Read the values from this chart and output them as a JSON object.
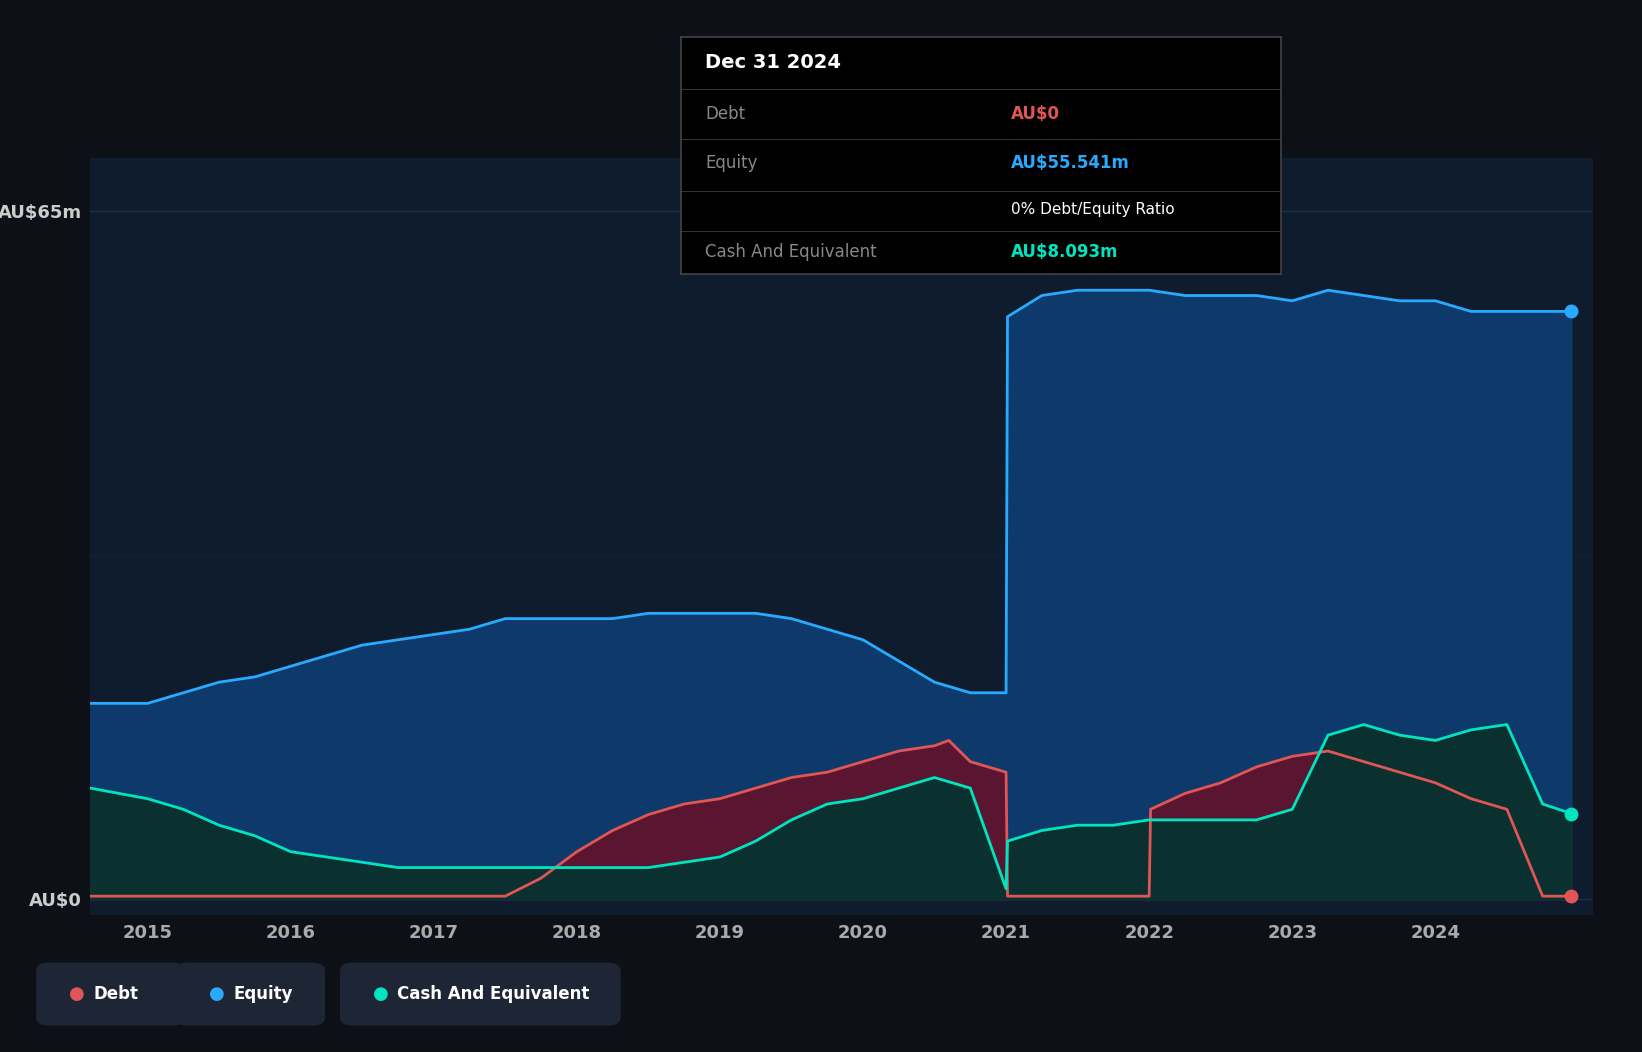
{
  "bg_color": "#0d1117",
  "plot_bg_color": "#0e1c2e",
  "ylabel_top": "AU$65m",
  "ylabel_bottom": "AU$0",
  "x_ticks": [
    2015,
    2016,
    2017,
    2018,
    2019,
    2020,
    2021,
    2022,
    2023,
    2024
  ],
  "xlim": [
    2014.6,
    2025.1
  ],
  "ylim": [
    -1.5,
    70
  ],
  "grid_color": "#1e3050",
  "equity_color": "#29aaff",
  "equity_fill": "#0d3a6a",
  "debt_color": "#e05555",
  "debt_fill": "#5a1530",
  "cash_color": "#00e5c0",
  "cash_fill": "#0a3030",
  "tooltip_title": "Dec 31 2024",
  "tooltip_debt_label": "Debt",
  "tooltip_debt_value": "AU$0",
  "tooltip_equity_label": "Equity",
  "tooltip_equity_value": "AU$55.541m",
  "tooltip_ratio": "0% Debt/Equity Ratio",
  "tooltip_cash_label": "Cash And Equivalent",
  "tooltip_cash_value": "AU$8.093m",
  "legend_items": [
    "Debt",
    "Equity",
    "Cash And Equivalent"
  ],
  "legend_colors": [
    "#e05555",
    "#29aaff",
    "#00e5c0"
  ],
  "legend_bg": "#1e2535",
  "equity_x": [
    2014.6,
    2014.83,
    2015.0,
    2015.25,
    2015.5,
    2015.75,
    2016.0,
    2016.25,
    2016.5,
    2016.75,
    2017.0,
    2017.25,
    2017.5,
    2017.75,
    2018.0,
    2018.25,
    2018.5,
    2018.75,
    2019.0,
    2019.25,
    2019.5,
    2019.75,
    2020.0,
    2020.25,
    2020.5,
    2020.75,
    2021.0,
    2021.01,
    2021.25,
    2021.5,
    2021.75,
    2022.0,
    2022.25,
    2022.5,
    2022.75,
    2023.0,
    2023.25,
    2023.5,
    2023.75,
    2024.0,
    2024.25,
    2024.5,
    2024.75,
    2024.95
  ],
  "equity_y": [
    18.5,
    18.5,
    18.5,
    19.5,
    20.5,
    21.0,
    22.0,
    23.0,
    24.0,
    24.5,
    25.0,
    25.5,
    26.5,
    26.5,
    26.5,
    26.5,
    27.0,
    27.0,
    27.0,
    27.0,
    26.5,
    25.5,
    24.5,
    22.5,
    20.5,
    19.5,
    19.5,
    55.0,
    57.0,
    57.5,
    57.5,
    57.5,
    57.0,
    57.0,
    57.0,
    56.5,
    57.5,
    57.0,
    56.5,
    56.5,
    55.5,
    55.5,
    55.5,
    55.5
  ],
  "debt_x": [
    2014.6,
    2015.0,
    2015.5,
    2016.0,
    2016.5,
    2017.0,
    2017.01,
    2017.5,
    2017.75,
    2018.0,
    2018.25,
    2018.5,
    2018.75,
    2019.0,
    2019.25,
    2019.5,
    2019.75,
    2020.0,
    2020.25,
    2020.5,
    2020.6,
    2020.75,
    2021.0,
    2021.01,
    2021.25,
    2021.5,
    2021.75,
    2022.0,
    2022.01,
    2022.25,
    2022.5,
    2022.75,
    2023.0,
    2023.25,
    2023.5,
    2023.75,
    2024.0,
    2024.25,
    2024.5,
    2024.75,
    2024.95
  ],
  "debt_y": [
    0.3,
    0.3,
    0.3,
    0.3,
    0.3,
    0.3,
    0.3,
    0.3,
    2.0,
    4.5,
    6.5,
    8.0,
    9.0,
    9.5,
    10.5,
    11.5,
    12.0,
    13.0,
    14.0,
    14.5,
    15.0,
    13.0,
    12.0,
    0.3,
    0.3,
    0.3,
    0.3,
    0.3,
    8.5,
    10.0,
    11.0,
    12.5,
    13.5,
    14.0,
    13.0,
    12.0,
    11.0,
    9.5,
    8.5,
    0.3,
    0.3
  ],
  "cash_x": [
    2014.6,
    2015.0,
    2015.25,
    2015.5,
    2015.75,
    2016.0,
    2016.25,
    2016.5,
    2016.75,
    2017.0,
    2017.25,
    2017.5,
    2017.75,
    2018.0,
    2018.5,
    2019.0,
    2019.25,
    2019.5,
    2019.75,
    2020.0,
    2020.25,
    2020.5,
    2020.75,
    2021.0,
    2021.01,
    2021.25,
    2021.5,
    2021.75,
    2022.0,
    2022.25,
    2022.5,
    2022.75,
    2023.0,
    2023.25,
    2023.5,
    2023.75,
    2024.0,
    2024.25,
    2024.5,
    2024.75,
    2024.95
  ],
  "cash_y": [
    10.5,
    9.5,
    8.5,
    7.0,
    6.0,
    4.5,
    4.0,
    3.5,
    3.0,
    3.0,
    3.0,
    3.0,
    3.0,
    3.0,
    3.0,
    4.0,
    5.5,
    7.5,
    9.0,
    9.5,
    10.5,
    11.5,
    10.5,
    1.0,
    5.5,
    6.5,
    7.0,
    7.0,
    7.5,
    7.5,
    7.5,
    7.5,
    8.5,
    15.5,
    16.5,
    15.5,
    15.0,
    16.0,
    16.5,
    9.0,
    8.1
  ]
}
